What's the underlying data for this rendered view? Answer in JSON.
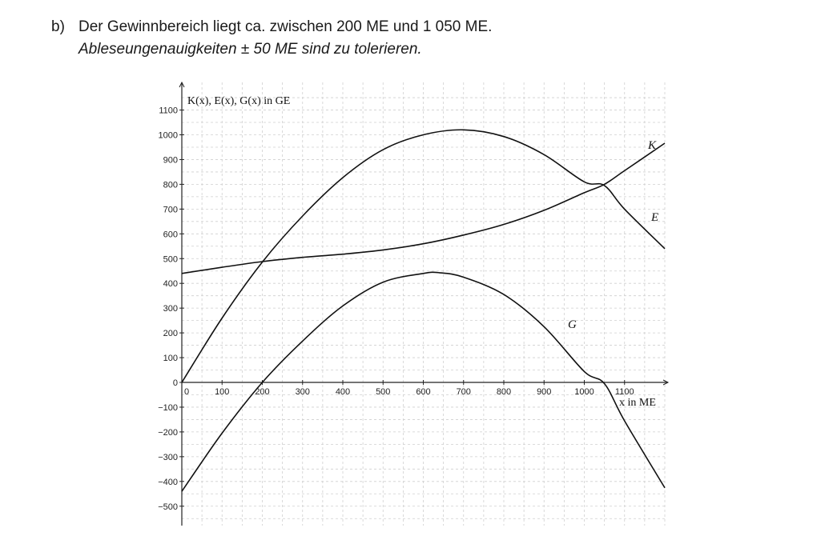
{
  "task": {
    "label": "b)",
    "line1": "Der Gewinnbereich liegt ca. zwischen 200 ME und 1 050 ME.",
    "line2": "Ableseungenauigkeiten ± 50 ME sind zu tolerieren."
  },
  "chart_data": {
    "type": "line",
    "ylabel": "K(x), E(x), G(x) in GE",
    "xlabel": "x in ME",
    "xlim": [
      0,
      1200
    ],
    "ylim": [
      -580,
      1180
    ],
    "x_ticks": [
      0,
      100,
      200,
      300,
      400,
      500,
      600,
      700,
      800,
      900,
      1000,
      1100
    ],
    "y_ticks": [
      1100,
      1000,
      900,
      800,
      700,
      600,
      500,
      400,
      300,
      200,
      100,
      0,
      -100,
      -200,
      -300,
      -400,
      -500
    ],
    "grid": true,
    "series": [
      {
        "name": "K",
        "x": [
          0,
          100,
          200,
          300,
          400,
          500,
          600,
          700,
          800,
          900,
          1000,
          1050,
          1100,
          1200
        ],
        "y": [
          440,
          465,
          488,
          505,
          518,
          535,
          560,
          595,
          638,
          695,
          766,
          800,
          855,
          966
        ]
      },
      {
        "name": "E",
        "x": [
          0,
          100,
          200,
          300,
          400,
          500,
          600,
          700,
          800,
          900,
          1000,
          1050,
          1100,
          1200
        ],
        "y": [
          0,
          260,
          486,
          672,
          827,
          940,
          1000,
          1020,
          993,
          920,
          810,
          795,
          700,
          540
        ]
      },
      {
        "name": "G",
        "x": [
          0,
          100,
          200,
          300,
          400,
          500,
          600,
          640,
          700,
          800,
          900,
          1000,
          1050,
          1100,
          1200
        ],
        "y": [
          -440,
          -205,
          0,
          167,
          309,
          405,
          440,
          443,
          425,
          355,
          225,
          44,
          -5,
          -155,
          -426
        ]
      }
    ]
  }
}
